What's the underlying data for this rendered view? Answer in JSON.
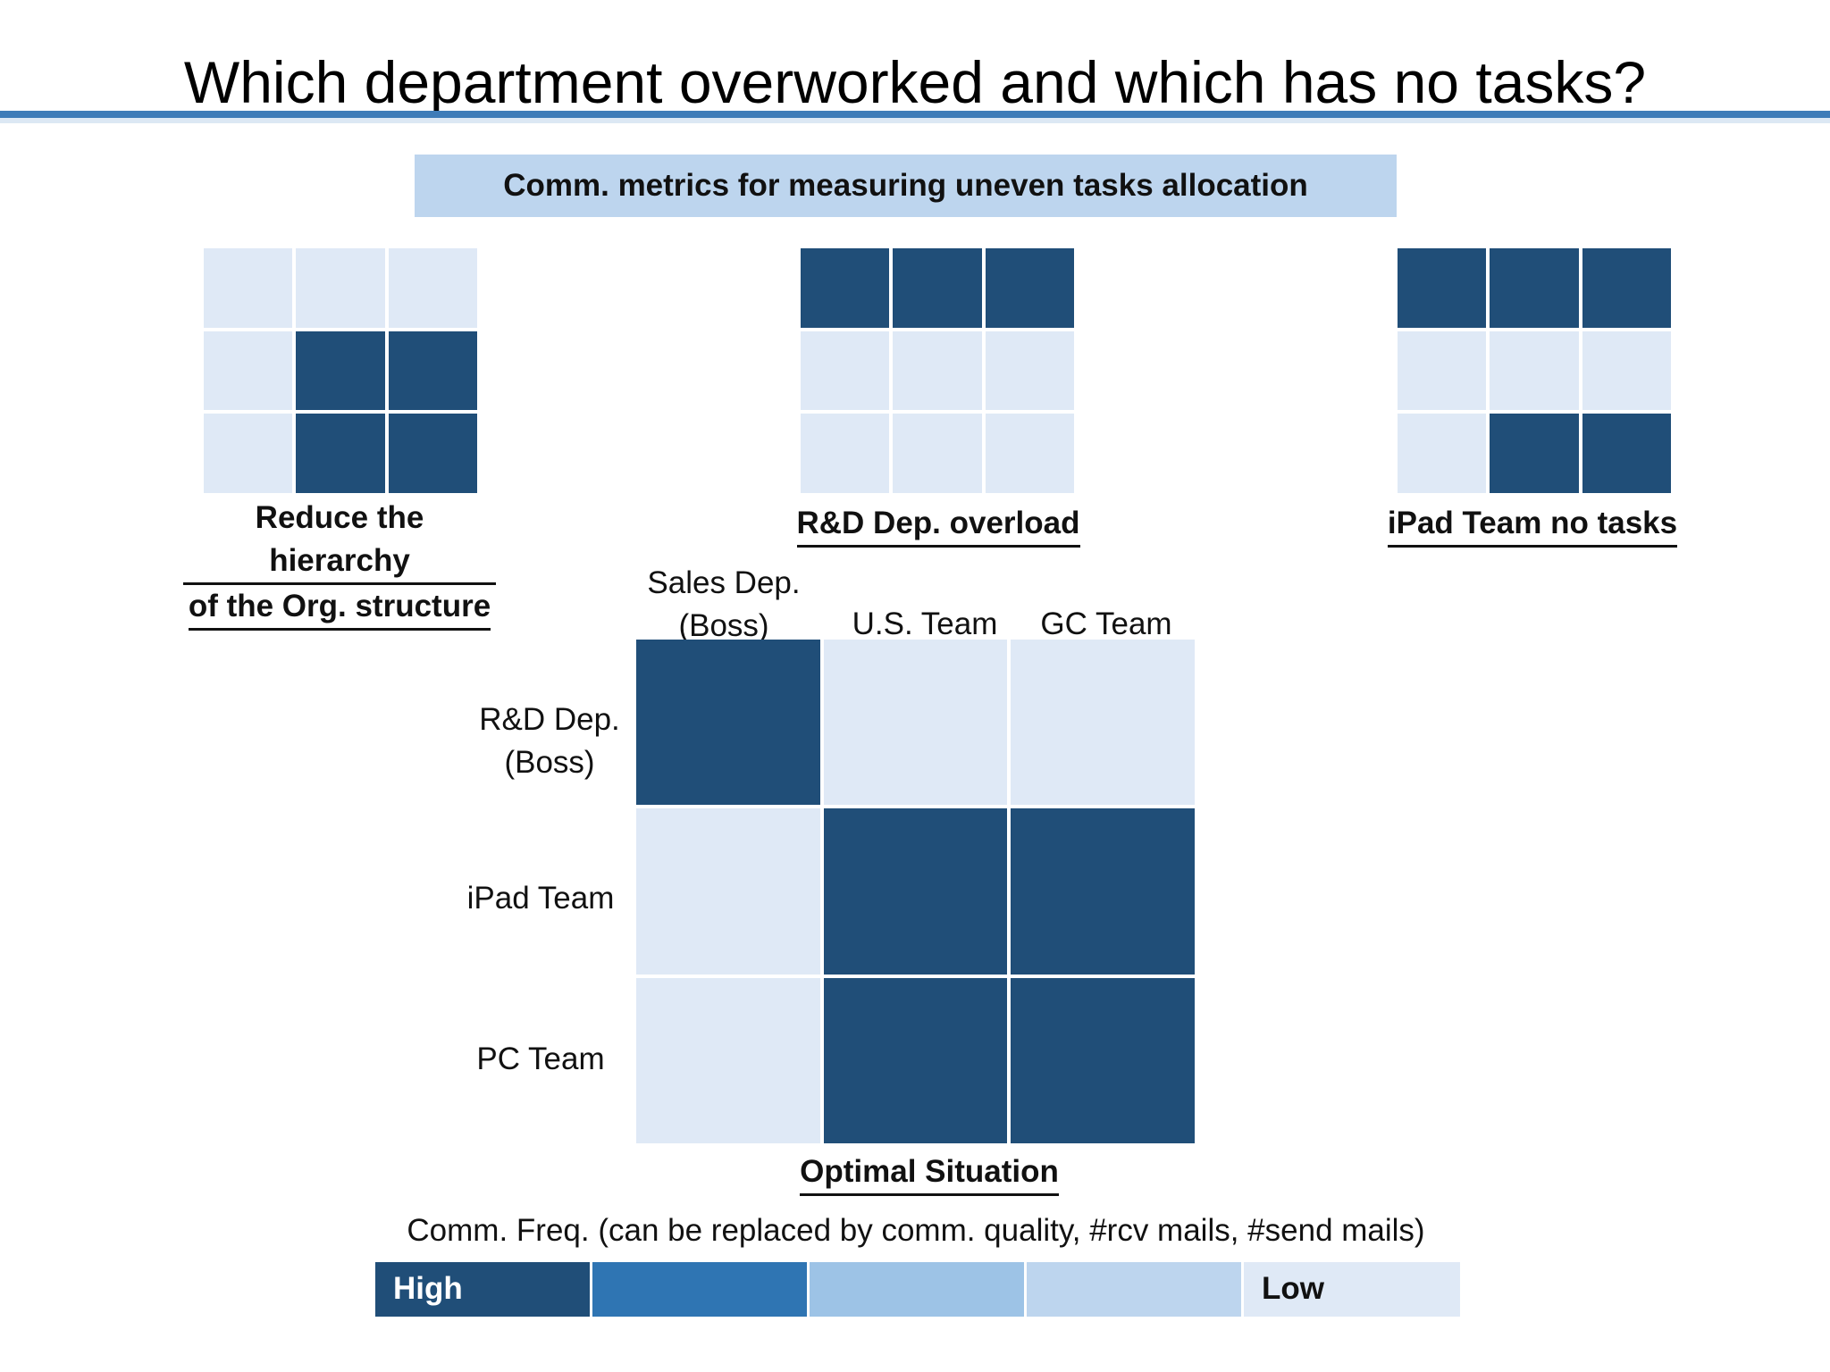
{
  "title": "Which department overworked and which has no tasks?",
  "subtitle": "Comm. metrics for measuring uneven tasks allocation",
  "colors": {
    "high": "#204e78",
    "low": "#dfe9f6",
    "accent_rule": "#3e7cb8",
    "subtitle_bg": "#bdd5ee"
  },
  "small_grids": [
    {
      "caption_line1": "Reduce the hierarchy",
      "caption_line2": "of the  Org. structure",
      "cells": [
        [
          0,
          0,
          0
        ],
        [
          0,
          1,
          1
        ],
        [
          0,
          1,
          1
        ]
      ]
    },
    {
      "caption": "R&D Dep. overload",
      "cells": [
        [
          1,
          1,
          1
        ],
        [
          0,
          0,
          0
        ],
        [
          0,
          0,
          0
        ]
      ]
    },
    {
      "caption": "iPad Team no tasks",
      "cells": [
        [
          1,
          1,
          1
        ],
        [
          0,
          0,
          0
        ],
        [
          0,
          1,
          1
        ]
      ]
    }
  ],
  "main_matrix": {
    "columns": [
      "Sales Dep.\n(Boss)",
      "U.S. Team",
      "GC Team"
    ],
    "column_1_line1": "Sales Dep.",
    "column_1_line2": "(Boss)",
    "column_2": "U.S. Team",
    "column_3": "GC Team",
    "row_1_line1": "R&D Dep.",
    "row_1_line2": "(Boss)",
    "row_2": "iPad Team",
    "row_3": "PC Team",
    "cells": [
      [
        1,
        0,
        0
      ],
      [
        0,
        1,
        1
      ],
      [
        0,
        1,
        1
      ]
    ],
    "caption": "Optimal Situation"
  },
  "legend": {
    "title": "Comm. Freq. (can be replaced by comm. quality, #rcv mails, #send mails)",
    "high_label": "High",
    "low_label": "Low",
    "scale_colors": [
      "#204e78",
      "#2f75b3",
      "#9dc3e6",
      "#bdd5ee",
      "#dfe9f6"
    ]
  }
}
